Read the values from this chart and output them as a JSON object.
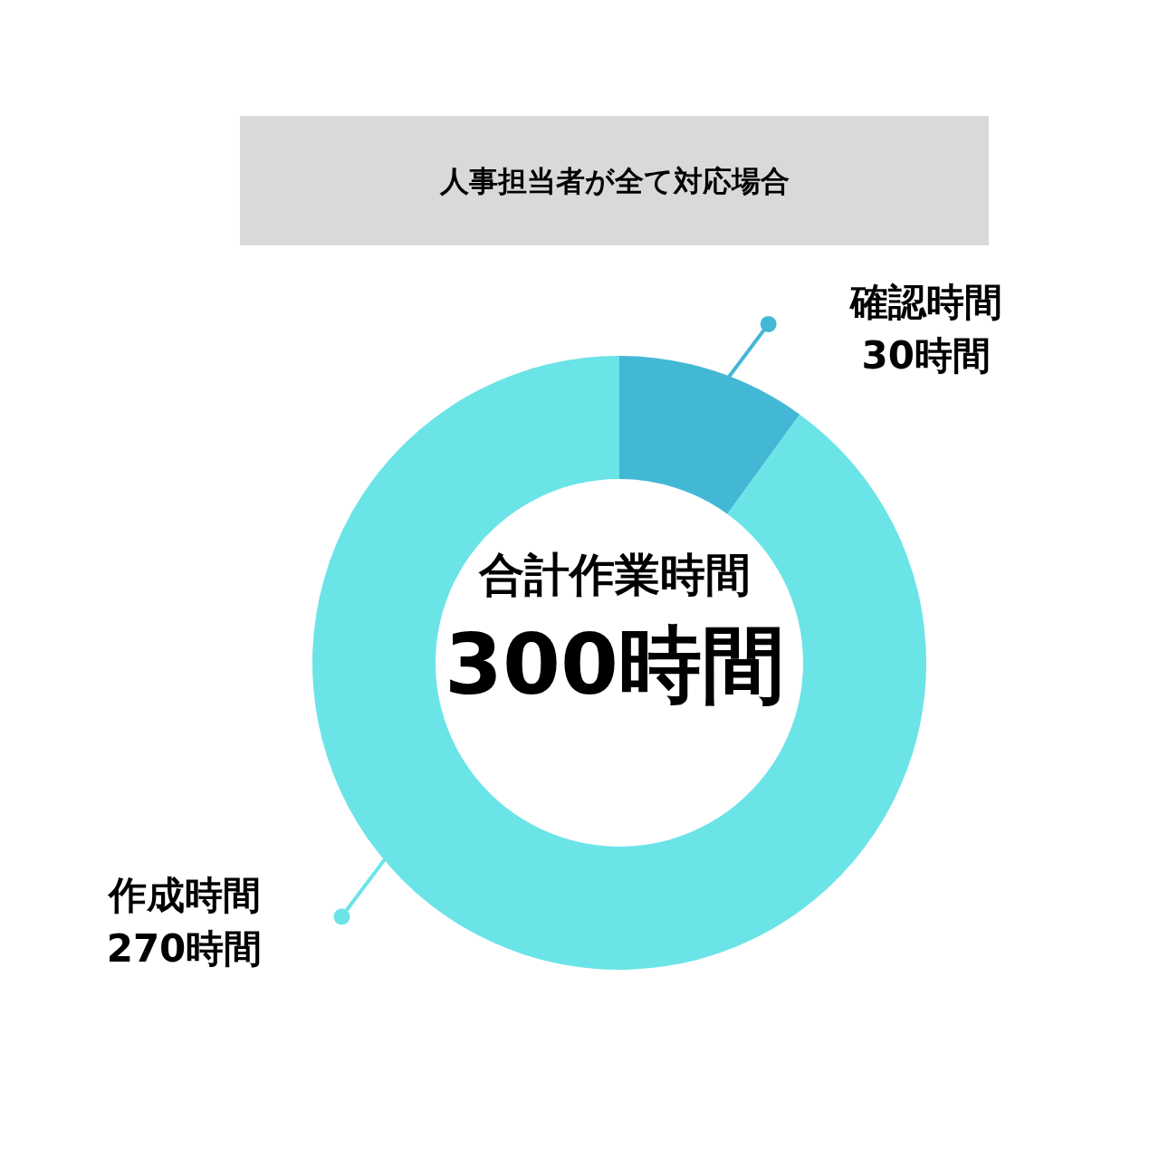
{
  "chart_data": {
    "type": "donut",
    "title": "人事担当者が全て対応場合",
    "categories": [
      "確認時間",
      "作成時間"
    ],
    "values": [
      30,
      270
    ],
    "colors": [
      "#43b8d5",
      "#6be4e8"
    ],
    "value_labels": [
      "30時間",
      "270時間"
    ],
    "annotations": [
      "合計作業時間",
      "300時間"
    ]
  }
}
